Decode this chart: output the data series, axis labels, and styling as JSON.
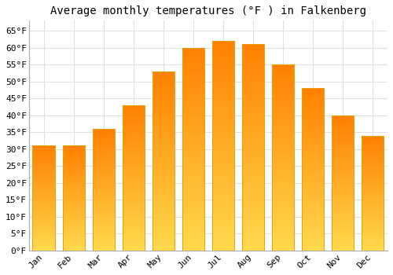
{
  "months": [
    "Jan",
    "Feb",
    "Mar",
    "Apr",
    "May",
    "Jun",
    "Jul",
    "Aug",
    "Sep",
    "Oct",
    "Nov",
    "Dec"
  ],
  "values": [
    31,
    31,
    36,
    43,
    53,
    60,
    62,
    61,
    55,
    48,
    40,
    34
  ],
  "bar_color_top": "#FFA500",
  "bar_color_bottom": "#FFD966",
  "bar_edge_color": "#E8A000",
  "title": "Average monthly temperatures (°F ) in Falkenberg",
  "ylim": [
    0,
    68
  ],
  "yticks": [
    0,
    5,
    10,
    15,
    20,
    25,
    30,
    35,
    40,
    45,
    50,
    55,
    60,
    65
  ],
  "ytick_labels": [
    "0°F",
    "5°F",
    "10°F",
    "15°F",
    "20°F",
    "25°F",
    "30°F",
    "35°F",
    "40°F",
    "45°F",
    "50°F",
    "55°F",
    "60°F",
    "65°F"
  ],
  "background_color": "#FFFFFF",
  "grid_color": "#E0E0E0",
  "title_fontsize": 10,
  "tick_fontsize": 8,
  "font_family": "monospace",
  "bar_width": 0.75
}
